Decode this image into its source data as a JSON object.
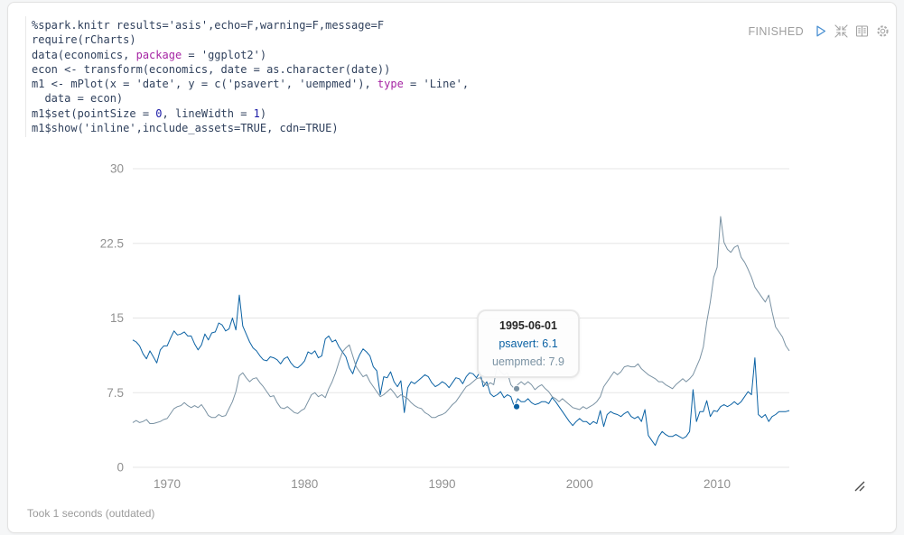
{
  "paragraph": {
    "status": "FINISHED",
    "footer": "Took 1 seconds (outdated)"
  },
  "toolbar": {
    "icons": [
      "play-icon",
      "shrink-icon",
      "book-icon",
      "gear-icon"
    ]
  },
  "colors": {
    "series_psavert": "#0b62a4",
    "series_uempmed": "#7a92a3",
    "run_icon_blue": "#4a90d2",
    "status_gray": "#9e9e9e",
    "code_keyword": "#a626a4",
    "code_number": "#1a1aa6",
    "gridline": "#e5e5e5"
  },
  "code": {
    "lines": [
      [
        [
          "plain",
          "%spark.knitr results='asis',echo=F,warning=F,message=F"
        ]
      ],
      [
        [
          "plain",
          "require(rCharts)"
        ]
      ],
      [
        [
          "plain",
          "data(economics, "
        ],
        [
          "keyword",
          "package"
        ],
        [
          "plain",
          " = 'ggplot2')"
        ]
      ],
      [
        [
          "plain",
          "econ <- transform(economics, date = as.character(date))"
        ]
      ],
      [
        [
          "plain",
          "m1 <- mPlot(x = 'date', y = c('psavert', 'uempmed'), "
        ],
        [
          "keyword",
          "type"
        ],
        [
          "plain",
          " = 'Line',"
        ]
      ],
      [
        [
          "plain",
          "  data = econ)"
        ]
      ],
      [
        [
          "plain",
          "m1$set(pointSize = "
        ],
        [
          "number",
          "0"
        ],
        [
          "plain",
          ", lineWidth = "
        ],
        [
          "number",
          "1"
        ],
        [
          "plain",
          ")"
        ]
      ],
      [
        [
          "plain",
          "m1$show('inline',include_assets=TRUE, cdn=TRUE)"
        ]
      ]
    ]
  },
  "tooltip": {
    "date": "1995-06-01",
    "entries": [
      {
        "series": "psavert",
        "text": "psavert: 6.1"
      },
      {
        "series": "uempmed",
        "text": "uempmed: 7.9"
      }
    ]
  },
  "chart_data": {
    "type": "line",
    "title": "",
    "xlabel": "",
    "ylabel": "",
    "grid": "horizontal",
    "legend_position": "none",
    "x_start": 1967.5,
    "x_step": 0.25,
    "xlim": [
      1967.5,
      2015.25
    ],
    "ylim": [
      0,
      30
    ],
    "y_ticks": [
      0,
      7.5,
      15,
      22.5,
      30
    ],
    "y_tick_labels": [
      "0",
      "7.5",
      "15",
      "22.5",
      "30"
    ],
    "x_ticks": [
      1970,
      1980,
      1990,
      2000,
      2010
    ],
    "x_tick_labels": [
      "1970",
      "1980",
      "1990",
      "2000",
      "2010"
    ],
    "hover": {
      "x": 1995.4167,
      "date": "1995-06-01",
      "values": {
        "psavert": 6.1,
        "uempmed": 7.9
      }
    },
    "series": [
      {
        "name": "psavert",
        "color": "#0b62a4",
        "values": [
          12.8,
          12.6,
          12.2,
          11.4,
          10.9,
          11.7,
          11.1,
          10.5,
          11.8,
          12.2,
          12.2,
          13.0,
          13.7,
          13.3,
          13.4,
          13.6,
          13.2,
          13.2,
          12.4,
          11.8,
          12.3,
          13.4,
          12.8,
          13.5,
          13.6,
          14.5,
          14.3,
          13.7,
          13.9,
          15.0,
          13.8,
          17.3,
          14.2,
          13.4,
          12.6,
          12.0,
          11.7,
          11.2,
          10.8,
          10.7,
          11.1,
          11.0,
          10.8,
          10.4,
          10.9,
          11.1,
          10.5,
          10.1,
          10.0,
          10.3,
          10.7,
          11.6,
          11.4,
          11.7,
          11.0,
          11.2,
          12.9,
          13.2,
          12.6,
          12.8,
          12.1,
          11.6,
          11.1,
          10.0,
          9.4,
          10.5,
          11.3,
          11.9,
          11.6,
          11.2,
          10.1,
          9.7,
          7.3,
          9.1,
          9.0,
          9.6,
          8.6,
          8.1,
          8.7,
          5.5,
          8.0,
          8.6,
          8.4,
          8.7,
          9.0,
          9.3,
          9.1,
          8.5,
          8.1,
          8.3,
          8.6,
          8.4,
          8.0,
          8.5,
          9.0,
          8.9,
          8.4,
          9.1,
          9.5,
          9.4,
          9.0,
          9.6,
          8.1,
          8.6,
          7.4,
          7.1,
          7.3,
          7.6,
          7.0,
          7.3,
          7.1,
          6.1,
          6.9,
          6.6,
          6.6,
          6.9,
          6.5,
          6.3,
          6.4,
          6.6,
          6.6,
          6.4,
          7.0,
          6.6,
          6.1,
          5.6,
          5.1,
          4.6,
          4.2,
          4.6,
          4.9,
          4.6,
          4.6,
          4.3,
          4.6,
          4.4,
          5.7,
          4.1,
          5.3,
          5.6,
          5.4,
          5.3,
          5.1,
          5.4,
          5.6,
          5.1,
          4.9,
          5.1,
          4.6,
          5.8,
          3.2,
          2.7,
          2.2,
          3.1,
          3.6,
          3.3,
          3.1,
          3.1,
          3.3,
          3.1,
          2.9,
          3.1,
          3.6,
          7.8,
          4.6,
          5.6,
          5.6,
          6.7,
          5.1,
          5.7,
          5.6,
          6.1,
          6.3,
          6.1,
          6.3,
          6.6,
          6.3,
          6.6,
          7.1,
          7.6,
          7.3,
          11.0,
          5.3,
          5.0,
          5.3,
          4.6,
          5.1,
          5.3,
          5.6,
          5.6,
          5.6,
          5.7
        ]
      },
      {
        "name": "uempmed",
        "color": "#7a92a3",
        "values": [
          4.5,
          4.7,
          4.5,
          4.6,
          4.8,
          4.4,
          4.4,
          4.5,
          4.6,
          4.8,
          4.9,
          5.4,
          5.9,
          6.1,
          6.2,
          6.5,
          6.2,
          6.0,
          6.2,
          6.0,
          6.3,
          5.8,
          5.2,
          5.0,
          5.0,
          5.3,
          5.1,
          5.2,
          5.9,
          6.6,
          7.6,
          9.2,
          9.5,
          9.0,
          8.6,
          8.9,
          9.0,
          8.5,
          8.1,
          7.6,
          7.1,
          7.2,
          6.5,
          6.0,
          5.9,
          6.1,
          5.8,
          5.5,
          5.4,
          5.7,
          5.9,
          6.6,
          7.3,
          7.5,
          7.1,
          7.3,
          7.0,
          7.9,
          8.6,
          9.5,
          10.6,
          11.6,
          12.0,
          12.3,
          11.2,
          10.1,
          9.6,
          9.1,
          9.3,
          8.6,
          8.1,
          7.6,
          7.1,
          7.3,
          7.6,
          7.9,
          7.5,
          7.0,
          7.3,
          7.1,
          6.9,
          6.5,
          6.2,
          6.0,
          5.9,
          5.5,
          5.3,
          5.0,
          5.0,
          5.2,
          5.3,
          5.5,
          5.9,
          6.3,
          6.6,
          7.1,
          7.6,
          8.1,
          8.3,
          8.6,
          8.9,
          9.0,
          8.6,
          8.2,
          8.5,
          8.3,
          10.2,
          9.6,
          9.3,
          9.5,
          8.3,
          7.9,
          8.3,
          8.6,
          8.3,
          8.6,
          8.3,
          7.8,
          8.1,
          8.3,
          7.9,
          7.6,
          7.1,
          6.9,
          6.6,
          6.9,
          6.6,
          6.3,
          6.0,
          5.9,
          5.8,
          6.1,
          5.9,
          6.1,
          6.3,
          6.6,
          7.1,
          8.1,
          8.6,
          9.1,
          9.6,
          9.3,
          9.6,
          10.1,
          10.2,
          10.1,
          10.1,
          10.4,
          9.9,
          9.6,
          9.3,
          9.1,
          8.9,
          8.6,
          8.6,
          8.3,
          8.1,
          7.9,
          8.3,
          8.6,
          8.9,
          8.6,
          8.9,
          9.3,
          10.1,
          10.9,
          12.1,
          14.6,
          16.6,
          19.1,
          20.1,
          25.2,
          22.6,
          21.9,
          21.6,
          22.1,
          22.3,
          21.1,
          20.6,
          19.9,
          19.1,
          18.1,
          17.6,
          17.1,
          16.6,
          17.3,
          15.6,
          14.1,
          13.6,
          13.1,
          12.2,
          11.7
        ]
      }
    ]
  }
}
